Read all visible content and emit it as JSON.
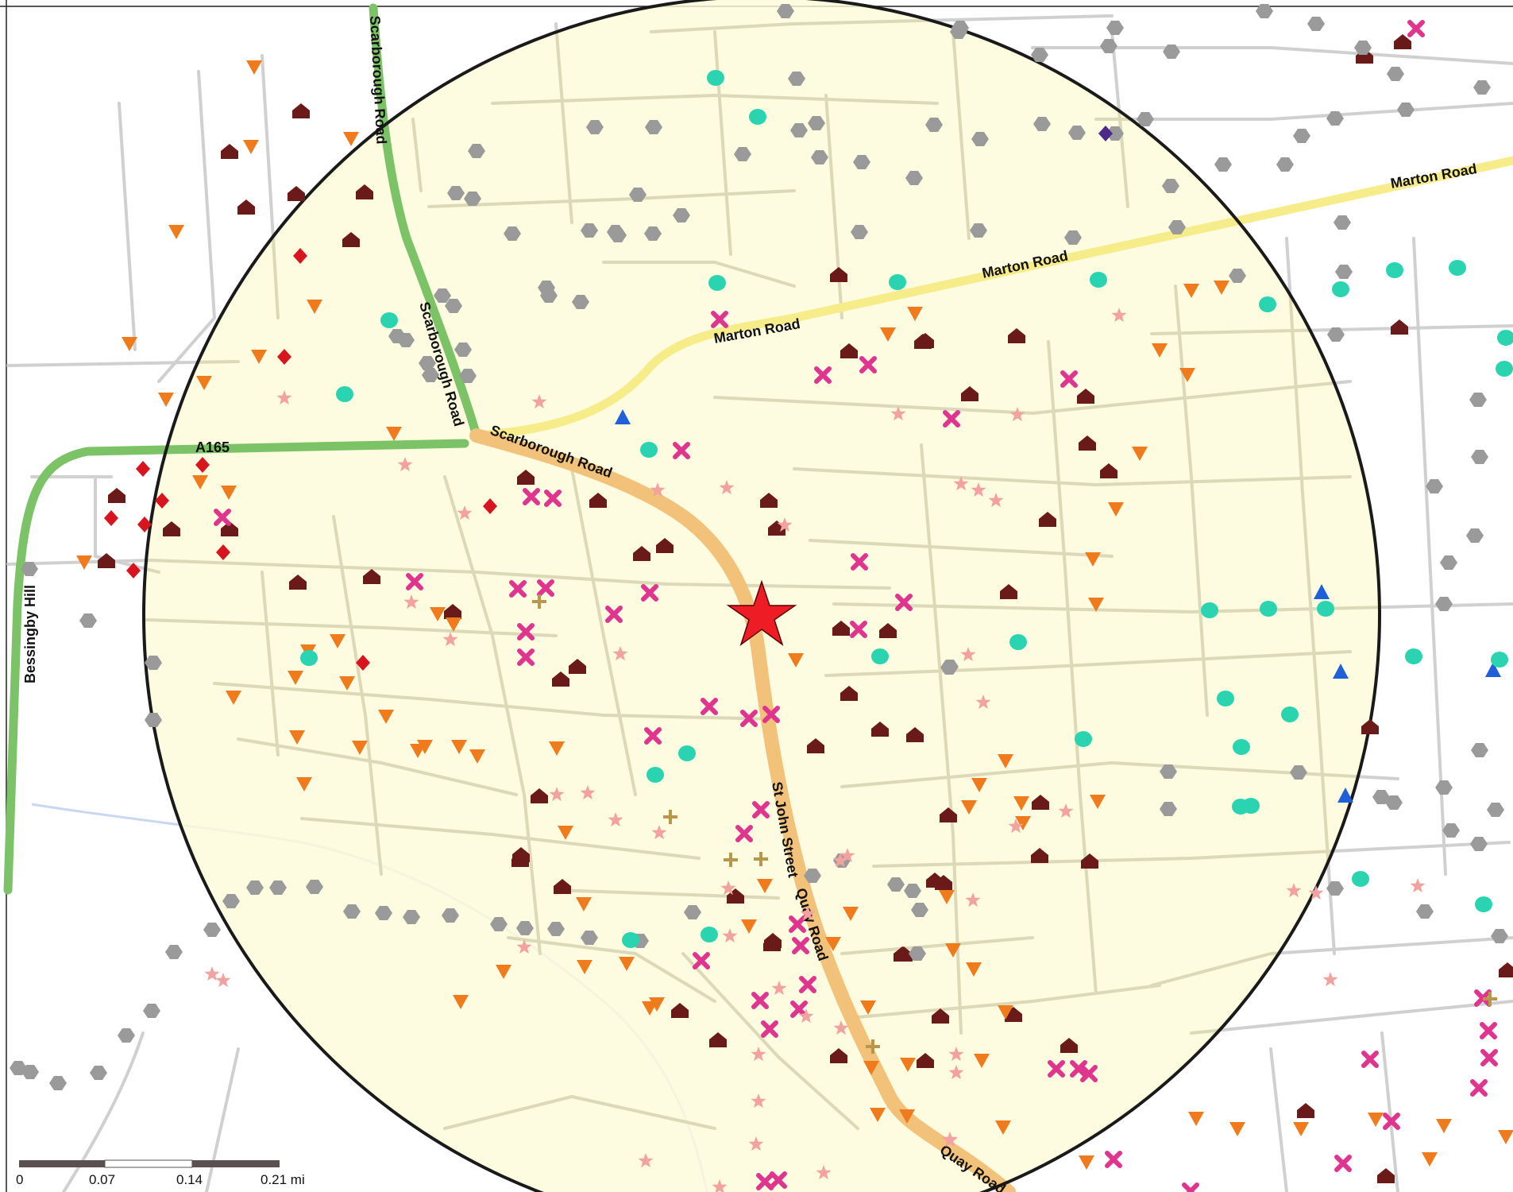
{
  "colors": {
    "background": "#ffffff",
    "street": "#d0d0d0",
    "buffer_fill": "#fdfbd9",
    "buffer_stroke": "#1a1a1a",
    "a_road": "#7cc266",
    "b_road": "#f7ec8a",
    "main_road": "#f2c27a",
    "river": "#c8d8f2",
    "center_star": "#ee1c24"
  },
  "map": {
    "roads": {
      "scarborough_north": "Scarborough Road",
      "scarborough_mid": "Scarborough Road",
      "scarborough_south": "Scarborough Road",
      "marton_west": "Marton Road",
      "marton_mid": "Marton Road",
      "marton_east": "Marton Road",
      "a165": "A165",
      "bessingby": "Bessingby Hill",
      "st_john": "St John Street",
      "quay_mid": "Quay Road",
      "quay_south": "Quay Road"
    },
    "center_marker": {
      "icon": "red-star-icon",
      "color": "#ee1c24"
    },
    "symbols": {
      "house": {
        "icon": "house-icon",
        "color": "#6b1a1a"
      },
      "cross": {
        "icon": "x-cross-icon",
        "color": "#e0358f"
      },
      "triangle_down": {
        "icon": "down-triangle-icon",
        "color": "#f07b1d"
      },
      "triangle_up": {
        "icon": "up-triangle-icon",
        "color": "#1f5fd8"
      },
      "hexagon": {
        "icon": "hexagon-icon",
        "color": "#9a9a9a"
      },
      "circle": {
        "icon": "circle-icon",
        "color": "#2bd4b0"
      },
      "star": {
        "icon": "star-icon",
        "color": "#f2a3a0"
      },
      "diamond": {
        "icon": "diamond-icon",
        "color": "#d8141e"
      },
      "plus": {
        "icon": "plus-icon",
        "color": "#b8964a"
      },
      "purple_diamond": {
        "icon": "diamond-icon",
        "color": "#4b2a8a"
      }
    }
  },
  "scale_bar": {
    "ticks": [
      "0",
      "0.07",
      "0.14",
      "0.21 mi"
    ]
  }
}
